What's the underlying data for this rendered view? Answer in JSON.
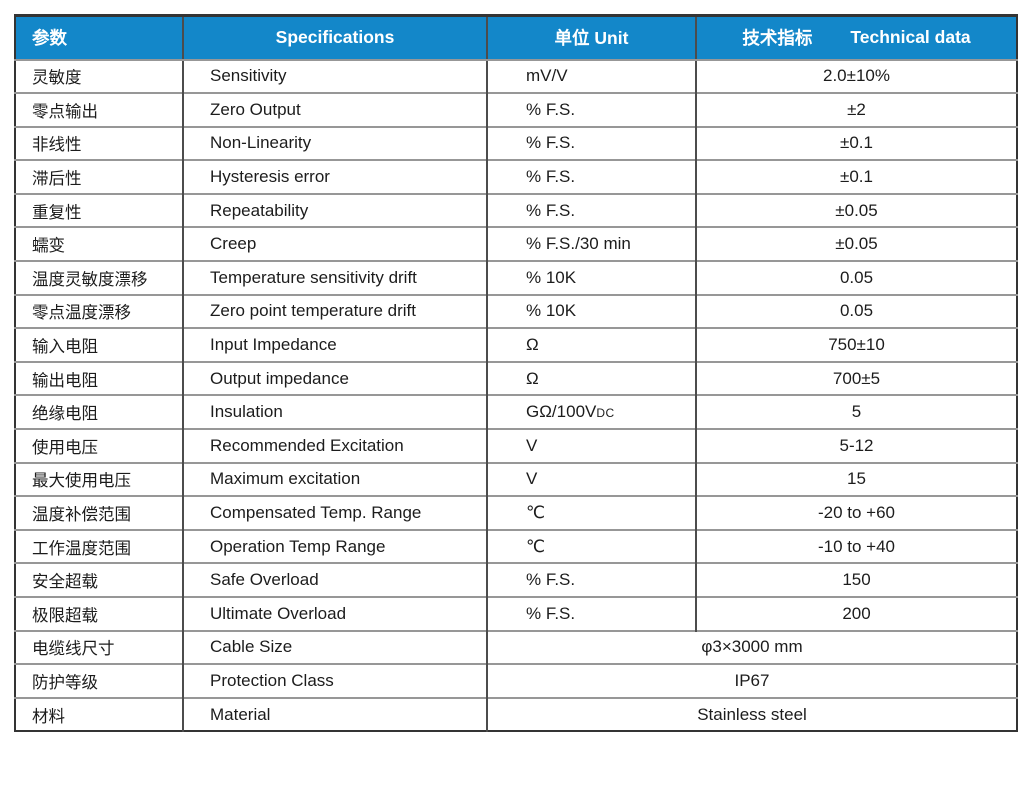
{
  "colors": {
    "header_bg": "#1387c9",
    "header_text": "#ffffff",
    "outer_border": "#343434",
    "column_border": "#4c4c4c",
    "row_border": "#979797"
  },
  "table": {
    "header": {
      "col1": "参数",
      "col2": "Specifications",
      "col3": "单位 Unit",
      "col4_zh": "技术指标",
      "col4_en": "Technical data"
    },
    "rows": [
      {
        "zh": "灵敏度",
        "en": "Sensitivity",
        "unit": "mV/V",
        "value": "2.0±10%"
      },
      {
        "zh": "零点输出",
        "en": "Zero Output",
        "unit": "% F.S.",
        "value": "±2"
      },
      {
        "zh": "非线性",
        "en": "Non-Linearity",
        "unit": "% F.S.",
        "value": "±0.1"
      },
      {
        "zh": "滞后性",
        "en": "Hysteresis error",
        "unit": "% F.S.",
        "value": "±0.1"
      },
      {
        "zh": "重复性",
        "en": "Repeatability",
        "unit": "% F.S.",
        "value": "±0.05"
      },
      {
        "zh": "蠕变",
        "en": "Creep",
        "unit": "% F.S./30 min",
        "value": "±0.05"
      },
      {
        "zh": "温度灵敏度漂移",
        "en": "Temperature sensitivity drift",
        "unit": "% 10K",
        "value": "0.05"
      },
      {
        "zh": "零点温度漂移",
        "en": "Zero point temperature drift",
        "unit": "% 10K",
        "value": "0.05"
      },
      {
        "zh": "输入电阻",
        "en": "Input Impedance",
        "unit": "Ω",
        "value": "750±10"
      },
      {
        "zh": "输出电阻",
        "en": "Output impedance",
        "unit": "Ω",
        "value": "700±5"
      },
      {
        "zh": "绝缘电阻",
        "en": "Insulation",
        "unit": "GΩ/100V",
        "unit_small": "DC",
        "value": "5"
      },
      {
        "zh": "使用电压",
        "en": "Recommended Excitation",
        "unit": "V",
        "value": "5-12"
      },
      {
        "zh": "最大使用电压",
        "en": "Maximum excitation",
        "unit": "V",
        "value": "15"
      },
      {
        "zh": "温度补偿范围",
        "en": "Compensated Temp. Range",
        "unit": "℃",
        "value": "-20 to +60"
      },
      {
        "zh": "工作温度范围",
        "en": "Operation Temp Range",
        "unit": "℃",
        "value": "-10 to +40"
      },
      {
        "zh": "安全超载",
        "en": "Safe Overload",
        "unit": "% F.S.",
        "value": "150"
      },
      {
        "zh": "极限超载",
        "en": "Ultimate Overload",
        "unit": "% F.S.",
        "value": "200"
      },
      {
        "zh": "电缆线尺寸",
        "en": "Cable Size",
        "merged_value": "φ3×3000 mm"
      },
      {
        "zh": "防护等级",
        "en": "Protection Class",
        "merged_value": "IP67"
      },
      {
        "zh": "材料",
        "en": "Material",
        "merged_value": "Stainless steel"
      }
    ]
  }
}
